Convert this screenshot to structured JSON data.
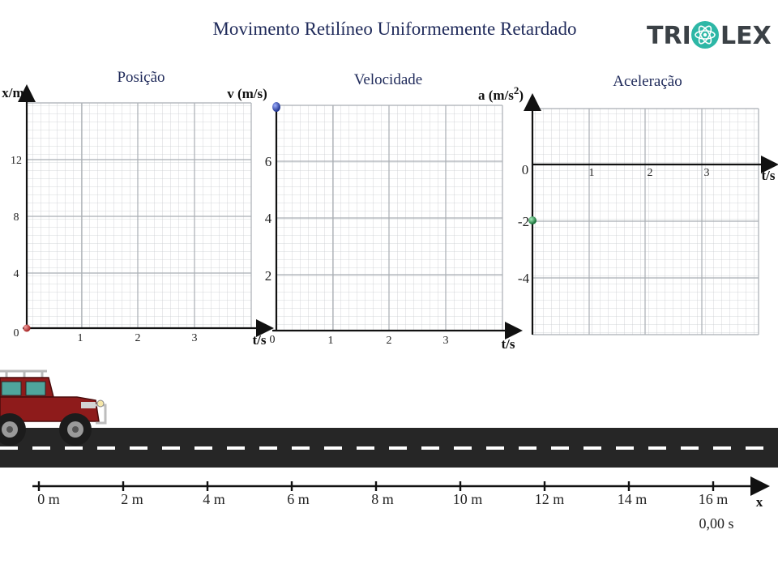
{
  "title": "Movimento Retilíneo Uniformemente Retardado",
  "logo": {
    "left_text": "TRI",
    "right_text": "LEX",
    "accent_color": "#2db7a6"
  },
  "charts": [
    {
      "id": "posicao",
      "title": "Posição",
      "y_axis_label": "x/m",
      "x_axis_label": "t/s",
      "x_ticks": [
        "1",
        "2",
        "3"
      ],
      "y_ticks": [
        "0",
        "4",
        "8",
        "12"
      ],
      "marker_color": "#c0392b",
      "marker_value": {
        "t": 0,
        "y": 0
      }
    },
    {
      "id": "velocidade",
      "title": "Velocidade",
      "y_axis_label": "v (m/s)",
      "x_axis_label": "t/s",
      "x_ticks": [
        "1",
        "2",
        "3"
      ],
      "y_ticks": [
        "0",
        "2",
        "4",
        "6"
      ],
      "marker_color": "#1f3a9a",
      "marker_value": {
        "t": 0,
        "y": 8
      }
    },
    {
      "id": "aceleracao",
      "title": "Aceleração",
      "y_axis_label": "a (m/s",
      "y_axis_label_sup": "2",
      "y_axis_label_close": ")",
      "x_axis_label": "t/s",
      "x_ticks": [
        "1",
        "2",
        "3"
      ],
      "y_ticks": [
        "0",
        "-2",
        "-4"
      ],
      "marker_color": "#1e7a3a",
      "marker_value": {
        "t": 0,
        "y": -2
      }
    }
  ],
  "ruler": {
    "labels": [
      "0 m",
      "2 m",
      "4 m",
      "6 m",
      "8 m",
      "10 m",
      "12 m",
      "14 m",
      "16 m"
    ],
    "axis_label": "x"
  },
  "time_readout": "0,00 s",
  "car": {
    "body_color": "#8e1b1b",
    "position_m": 0
  }
}
